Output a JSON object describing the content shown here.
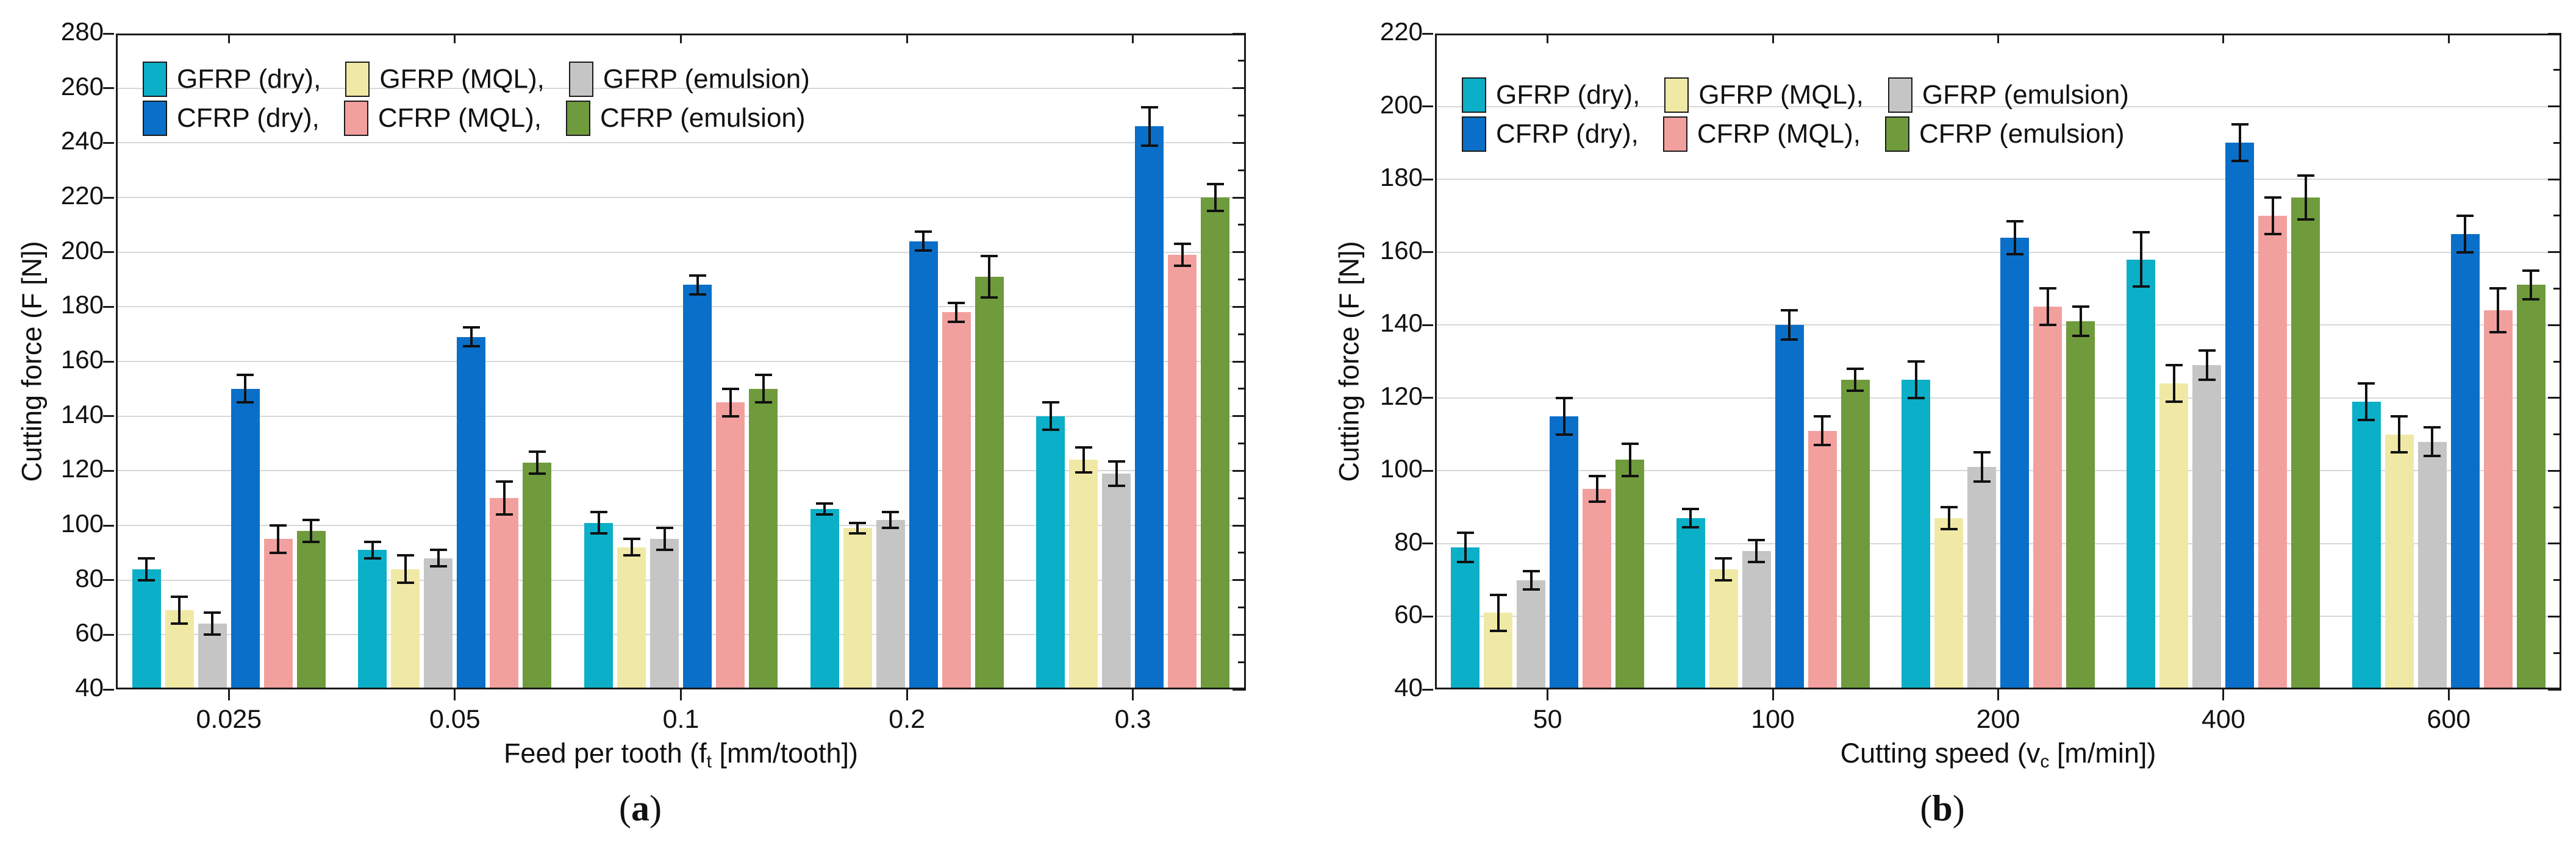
{
  "figure": {
    "background": "#ffffff",
    "ylabel": "Cutting force (F [N])",
    "legend_rows": [
      [
        {
          "series": "GFRP (dry)",
          "label": "GFRP (dry),"
        },
        {
          "series": "GFRP (MQL)",
          "label": "GFRP (MQL),"
        },
        {
          "series": "GFRP (emulsion)",
          "label": "GFRP (emulsion)"
        }
      ],
      [
        {
          "series": "CFRP (dry)",
          "label": "CFRP (dry),"
        },
        {
          "series": "CFRP (MQL)",
          "label": "CFRP (MQL),"
        },
        {
          "series": "CFRP (emulsion)",
          "label": "CFRP (emulsion)"
        }
      ]
    ]
  },
  "colors": {
    "GFRP (dry)": "#0CAFC8",
    "GFRP (MQL)": "#F0E9A5",
    "GFRP (emulsion)": "#C5C5C5",
    "CFRP (dry)": "#0A6FC8",
    "CFRP (MQL)": "#F2A09E",
    "CFRP (emulsion)": "#6F9B3C",
    "axis": "#1a1a1a",
    "gridline": "#d7d7d7",
    "error_bar": "#111111"
  },
  "chart_data": [
    {
      "id": "a",
      "type": "bar",
      "caption": {
        "pre": "(",
        "letter": "a",
        "post": ")"
      },
      "ylabel": "Cutting force (F [N])",
      "xlabel": {
        "pre": "Feed per tooth (f",
        "sub": "t",
        "post": " [mm/tooth])"
      },
      "ylim": [
        40,
        280
      ],
      "ytick_step": 20,
      "right_minor_tick_step": 10,
      "grid": true,
      "legend_position": "top-left",
      "categories": [
        "0.025",
        "0.05",
        "0.1",
        "0.2",
        "0.3"
      ],
      "series": [
        {
          "name": "GFRP (dry)",
          "values": [
            84,
            91,
            101,
            106,
            140
          ],
          "errors": [
            4,
            3,
            4,
            2,
            5
          ]
        },
        {
          "name": "GFRP (MQL)",
          "values": [
            69,
            84,
            92,
            99,
            124
          ],
          "errors": [
            5,
            5,
            3,
            2,
            4.5
          ]
        },
        {
          "name": "GFRP (emulsion)",
          "values": [
            64,
            88,
            95,
            102,
            119
          ],
          "errors": [
            4,
            3,
            4,
            3,
            4.5
          ]
        },
        {
          "name": "CFRP (dry)",
          "values": [
            150,
            169,
            188,
            204,
            246
          ],
          "errors": [
            5,
            3.5,
            3.5,
            3.5,
            7
          ]
        },
        {
          "name": "CFRP (MQL)",
          "values": [
            95,
            110,
            145,
            178,
            199
          ],
          "errors": [
            5,
            6,
            5,
            3.5,
            4
          ]
        },
        {
          "name": "CFRP (emulsion)",
          "values": [
            98,
            123,
            150,
            191,
            220
          ],
          "errors": [
            4,
            4,
            5,
            7.5,
            5
          ]
        }
      ]
    },
    {
      "id": "b",
      "type": "bar",
      "caption": {
        "pre": "(",
        "letter": "b",
        "post": ")"
      },
      "ylabel": "Cutting force (F [N])",
      "xlabel": {
        "pre": "Cutting speed (v",
        "sub": "c",
        "post": " [m/min])"
      },
      "ylim": [
        40,
        220
      ],
      "ytick_step": 20,
      "right_minor_tick_step": 10,
      "grid": true,
      "legend_position": "top-left",
      "categories": [
        "50",
        "100",
        "200",
        "400",
        "600"
      ],
      "series": [
        {
          "name": "GFRP (dry)",
          "values": [
            79,
            87,
            125,
            158,
            119
          ],
          "errors": [
            4,
            2.5,
            5,
            7.5,
            5
          ]
        },
        {
          "name": "GFRP (MQL)",
          "values": [
            61,
            73,
            87,
            124,
            110
          ],
          "errors": [
            5,
            3,
            3,
            5,
            5
          ]
        },
        {
          "name": "GFRP (emulsion)",
          "values": [
            70,
            78,
            101,
            129,
            108
          ],
          "errors": [
            2.5,
            3,
            4,
            4,
            4
          ]
        },
        {
          "name": "CFRP (dry)",
          "values": [
            115,
            140,
            164,
            190,
            165
          ],
          "errors": [
            5,
            4,
            4.5,
            5,
            5
          ]
        },
        {
          "name": "CFRP (MQL)",
          "values": [
            95,
            111,
            145,
            170,
            144
          ],
          "errors": [
            3.5,
            4,
            5,
            5,
            6
          ]
        },
        {
          "name": "CFRP (emulsion)",
          "values": [
            103,
            125,
            141,
            175,
            151
          ],
          "errors": [
            4.5,
            3,
            4,
            6,
            4
          ]
        }
      ]
    }
  ]
}
